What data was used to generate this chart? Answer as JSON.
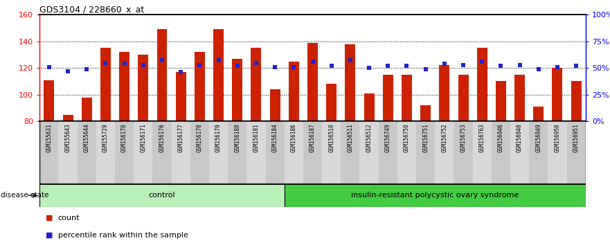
{
  "title": "GDS3104 / 228660_x_at",
  "samples": [
    "GSM155631",
    "GSM155643",
    "GSM155644",
    "GSM155729",
    "GSM156170",
    "GSM156171",
    "GSM156176",
    "GSM156177",
    "GSM156178",
    "GSM156179",
    "GSM156180",
    "GSM156181",
    "GSM156184",
    "GSM156186",
    "GSM156187",
    "GSM156510",
    "GSM156511",
    "GSM156512",
    "GSM156749",
    "GSM156750",
    "GSM156751",
    "GSM156752",
    "GSM156753",
    "GSM156763",
    "GSM156946",
    "GSM156948",
    "GSM156949",
    "GSM156950",
    "GSM156951"
  ],
  "bar_values": [
    111,
    85,
    98,
    135,
    132,
    130,
    149,
    117,
    132,
    149,
    127,
    135,
    104,
    125,
    139,
    108,
    138,
    101,
    115,
    115,
    92,
    122,
    115,
    135,
    110,
    115,
    91,
    120,
    110
  ],
  "percentile_values": [
    51,
    47,
    49,
    55,
    54,
    53,
    57,
    46,
    53,
    57,
    52,
    55,
    51,
    51,
    56,
    52,
    57,
    50,
    52,
    52,
    49,
    54,
    53,
    56,
    52,
    53,
    49,
    51,
    52
  ],
  "control_count": 13,
  "disease_count": 16,
  "bar_color": "#cc2200",
  "dot_color": "#2222cc",
  "ymin": 80,
  "ymax": 160,
  "yticks_left": [
    80,
    100,
    120,
    140,
    160
  ],
  "yticks_right_vals": [
    0,
    25,
    50,
    75,
    100
  ],
  "yticks_right_labels": [
    "0%",
    "25%",
    "50%",
    "75%",
    "100%"
  ],
  "control_label": "control",
  "disease_label": "insulin-resistant polycystic ovary syndrome",
  "disease_state_label": "disease state",
  "legend_count_label": "count",
  "legend_percentile_label": "percentile rank within the sample",
  "control_color": "#b8f0b8",
  "disease_color": "#44cc44",
  "xtick_colors": [
    "#c8c8c8",
    "#d8d8d8"
  ]
}
